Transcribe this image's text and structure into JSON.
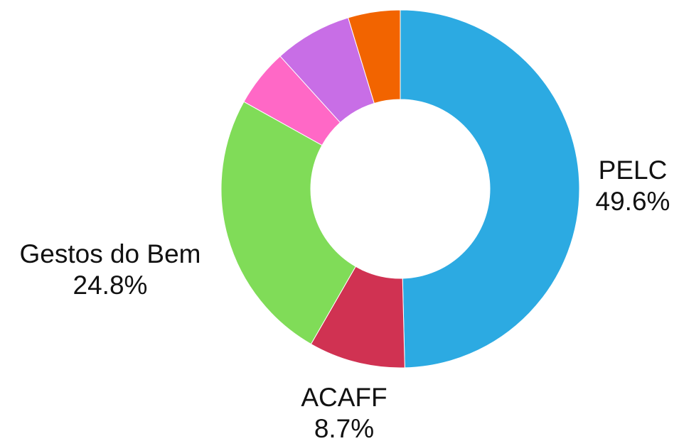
{
  "chart_data": {
    "type": "pie",
    "subtype": "donut",
    "title": "",
    "legend": "none",
    "slices": [
      {
        "label": "PELC",
        "value": 49.6,
        "value_label": "49.6%",
        "color": "#2caae2",
        "labelled": true
      },
      {
        "label": "ACAFF",
        "value": 8.7,
        "value_label": "8.7%",
        "color": "#d03252",
        "labelled": true
      },
      {
        "label": "Gestos do Bem",
        "value": 24.8,
        "value_label": "24.8%",
        "color": "#80dc58",
        "labelled": true
      },
      {
        "value": 5.2,
        "color": "#ff68c6",
        "labelled": false
      },
      {
        "value": 7.0,
        "color": "#c86ee6",
        "labelled": false
      },
      {
        "value": 4.7,
        "color": "#f26400",
        "labelled": false
      }
    ]
  }
}
